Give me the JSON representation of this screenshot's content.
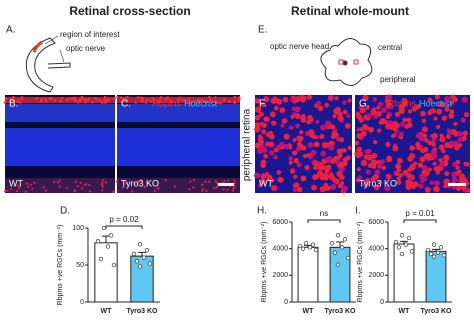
{
  "headings": {
    "left": "Retinal cross-section",
    "right": "Retinal whole-mount"
  },
  "panels": {
    "a": {
      "letter": "A.",
      "roi": "region of interest",
      "nerve": "optic nerve"
    },
    "e": {
      "letter": "E.",
      "nerve": "optic nerve head",
      "central": "central",
      "peripheral": "peripheral"
    },
    "b": {
      "letter": "B.",
      "genotype": "WT"
    },
    "c": {
      "letter": "C.",
      "stain1": "Rbpms",
      "stain2": "Hoechst",
      "genotype": "Tyro3 KO"
    },
    "f": {
      "letter": "F.",
      "genotype": "WT",
      "side": "peripheral retina"
    },
    "g": {
      "letter": "G.",
      "stain1": "Rbpms",
      "stain2": "Hoechst",
      "genotype": "Tyro3 KO"
    }
  },
  "chart_data": [
    {
      "type": "bar",
      "panel": "D.",
      "ylabel": "Rbpms +ve RGCs (mm⁻¹)",
      "categories": [
        "WT",
        "Tyro3 KO"
      ],
      "values": [
        80,
        62
      ],
      "errors": [
        9,
        5
      ],
      "colors": [
        "#ffffff",
        "#5ec8f2"
      ],
      "points": [
        [
          100,
          90,
          82,
          75,
          58,
          50
        ],
        [
          78,
          70,
          65,
          60,
          55,
          52,
          48
        ]
      ],
      "ylim": [
        0,
        100
      ],
      "yticks": [
        0,
        50,
        100
      ],
      "annotation": "p = 0.02"
    },
    {
      "type": "bar",
      "panel": "H.",
      "ylabel": "Rbpms +ve RGCs (mm⁻²)",
      "categories": [
        "WT",
        "Tyro3 KO"
      ],
      "values": [
        4100,
        4100
      ],
      "errors": [
        150,
        400
      ],
      "colors": [
        "#ffffff",
        "#5ec8f2"
      ],
      "points": [
        [
          4400,
          4300,
          4200,
          4100,
          4000,
          3900
        ],
        [
          5000,
          4700,
          4400,
          4100,
          3700,
          3300,
          2800
        ]
      ],
      "ylim": [
        0,
        6000
      ],
      "yticks": [
        0,
        2000,
        4000,
        6000
      ],
      "annotation": "ns"
    },
    {
      "type": "bar",
      "panel": "I.",
      "ylabel": "Rbpms +ve RGCs (mm⁻²)",
      "categories": [
        "WT",
        "Tyro3 KO"
      ],
      "values": [
        4350,
        3800
      ],
      "errors": [
        200,
        150
      ],
      "colors": [
        "#ffffff",
        "#5ec8f2"
      ],
      "points": [
        [
          5000,
          4800,
          4500,
          4300,
          4100,
          3800,
          3600
        ],
        [
          4300,
          4100,
          3900,
          3700,
          3600,
          3500,
          3400
        ]
      ],
      "ylim": [
        0,
        6000
      ],
      "yticks": [
        0,
        2000,
        4000,
        6000
      ],
      "annotation": "p = 0.01"
    }
  ]
}
